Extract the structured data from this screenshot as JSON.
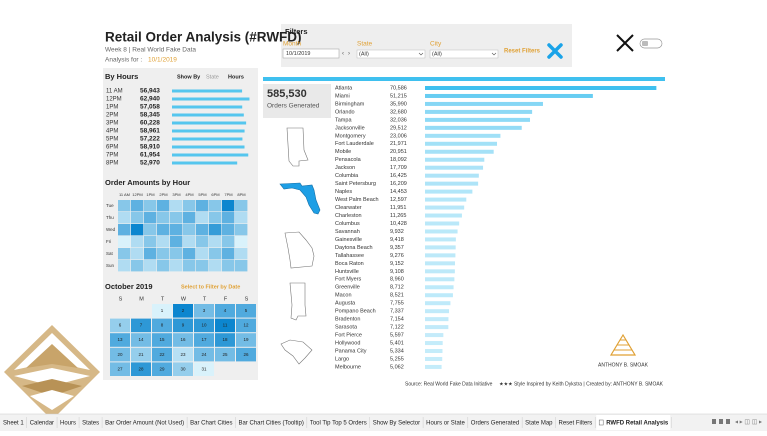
{
  "header": {
    "title": "Retail Order Analysis (#RWFD)",
    "subtitle": "Week 8 | Real World Fake Data",
    "analysis_label": "Analysis for :",
    "analysis_date": "10/1/2019"
  },
  "filters": {
    "title": "Filters",
    "month_label": "Month",
    "month_value": "10/1/2019",
    "state_label": "State",
    "state_value": "(All)",
    "city_label": "City",
    "city_value": "(All)",
    "reset": "Reset Filters"
  },
  "show_by": {
    "label": "Show By",
    "options": [
      "State",
      "Hours"
    ]
  },
  "summary": {
    "value": 585530,
    "value_label": "585,530",
    "caption": "Orders Generated"
  },
  "chart_data": [
    {
      "type": "bar",
      "orientation": "horizontal",
      "title": "By Hours",
      "categories": [
        "11 AM",
        "12PM",
        "1PM",
        "2PM",
        "3PM",
        "4PM",
        "5PM",
        "6PM",
        "7PM",
        "8PM"
      ],
      "values": [
        56943,
        62940,
        57058,
        58345,
        60228,
        58961,
        57222,
        58910,
        61954,
        52970
      ],
      "value_labels": [
        "56,943",
        "62,940",
        "57,058",
        "58,345",
        "60,228",
        "58,961",
        "57,222",
        "58,910",
        "61,954",
        "52,970"
      ],
      "color": "#55c6ee",
      "xlim": [
        0,
        65000
      ]
    },
    {
      "type": "heatmap",
      "title": "Order Amounts by Hour",
      "x": [
        "11 AM",
        "12PM",
        "1PM",
        "2PM",
        "3PM",
        "4PM",
        "5PM",
        "6PM",
        "7PM",
        "8PM"
      ],
      "y": [
        "Tue",
        "Thu",
        "Wed",
        "Fri",
        "Sat",
        "Sun"
      ],
      "values": [
        [
          5,
          6,
          5,
          6,
          4,
          5,
          6,
          5,
          8,
          5
        ],
        [
          4,
          5,
          6,
          5,
          5,
          6,
          4,
          5,
          6,
          4
        ],
        [
          6,
          8,
          5,
          6,
          6,
          5,
          6,
          7,
          6,
          5
        ],
        [
          3,
          4,
          5,
          4,
          6,
          4,
          5,
          4,
          5,
          3
        ],
        [
          5,
          4,
          6,
          5,
          5,
          6,
          4,
          5,
          6,
          4
        ],
        [
          4,
          5,
          4,
          5,
          4,
          5,
          5,
          4,
          5,
          5
        ]
      ],
      "color_range": [
        "#d9f2fb",
        "#0c86cf"
      ]
    },
    {
      "type": "calendar",
      "title": "October 2019",
      "subtitle": "Select to Filter by Date",
      "weekdays": [
        "S",
        "M",
        "T",
        "W",
        "T",
        "F",
        "S"
      ],
      "weeks": [
        [
          null,
          null,
          1,
          2,
          3,
          4,
          5
        ],
        [
          6,
          7,
          8,
          9,
          10,
          11,
          12
        ],
        [
          13,
          14,
          15,
          16,
          17,
          18,
          19
        ],
        [
          20,
          21,
          22,
          23,
          24,
          25,
          26
        ],
        [
          27,
          28,
          29,
          30,
          31,
          null,
          null
        ]
      ],
      "values": [
        [
          null,
          null,
          2,
          8,
          5,
          6,
          6
        ],
        [
          4,
          7,
          6,
          7,
          7,
          8,
          6
        ],
        [
          6,
          5,
          6,
          5,
          6,
          7,
          5
        ],
        [
          5,
          4,
          6,
          3,
          5,
          5,
          6
        ],
        [
          5,
          7,
          6,
          4,
          2,
          null,
          null
        ]
      ],
      "color_range": [
        "#d9f2fb",
        "#0c86cf"
      ]
    },
    {
      "type": "bar",
      "orientation": "horizontal",
      "categories": [
        "Atlanta",
        "Miami",
        "Birmingham",
        "Orlando",
        "Tampa",
        "Jacksonville",
        "Montgomery",
        "Fort Lauderdale",
        "Mobile",
        "Pensacola",
        "Jackson",
        "Columbia",
        "Saint Petersburg",
        "Naples",
        "West Palm Beach",
        "Clearwater",
        "Charleston",
        "Columbus",
        "Savannah",
        "Gainesville",
        "Daytona Beach",
        "Tallahassee",
        "Boca Raton",
        "Huntsville",
        "Fort Myers",
        "Greenville",
        "Macon",
        "Augusta",
        "Pompano Beach",
        "Bradenton",
        "Sarasota",
        "Fort Pierce",
        "Hollywood",
        "Panama City",
        "Largo",
        "Melbourne"
      ],
      "values": [
        70586,
        51215,
        35990,
        32680,
        32036,
        29512,
        23006,
        21971,
        20951,
        18092,
        17709,
        16425,
        16209,
        14453,
        12597,
        11951,
        11265,
        10428,
        9932,
        9418,
        9357,
        9276,
        9152,
        9108,
        8960,
        8712,
        8521,
        7755,
        7337,
        7154,
        7122,
        5597,
        5401,
        5334,
        5255,
        5062
      ],
      "value_labels": [
        "70,586",
        "51,215",
        "35,990",
        "32,680",
        "32,036",
        "29,512",
        "23,006",
        "21,971",
        "20,951",
        "18,092",
        "17,709",
        "16,425",
        "16,209",
        "14,453",
        "12,597",
        "11,951",
        "11,265",
        "10,428",
        "9,932",
        "9,418",
        "9,357",
        "9,276",
        "9,152",
        "9,108",
        "8,960",
        "8,712",
        "8,521",
        "7,755",
        "7,337",
        "7,154",
        "7,122",
        "5,597",
        "5,401",
        "5,334",
        "5,255",
        "5,062"
      ],
      "color": "#3fc0ef",
      "xlim": [
        0,
        72000
      ]
    }
  ],
  "footer": {
    "source": "Source: Real World Fake Data Initiative",
    "credit": "★★★ Style Inspired by Keith Dykstra | Created by: ANTHONY B. SMOAK",
    "logo_text": "ANTHONY B. SMOAK"
  },
  "tabs": {
    "items": [
      "Sheet 1",
      "Calendar",
      "Hours",
      "States",
      "Bar Order Amount (Not Used)",
      "Bar Chart Cities",
      "Bar Chart Cities (Tooltip)",
      "Tool Tip Top 5 Orders",
      "Show By Selector",
      "Hours or State",
      "Orders Generated",
      "State Map",
      "Reset Filters",
      "RWFD Retail Analysis"
    ],
    "active": "RWFD Retail Analysis"
  }
}
